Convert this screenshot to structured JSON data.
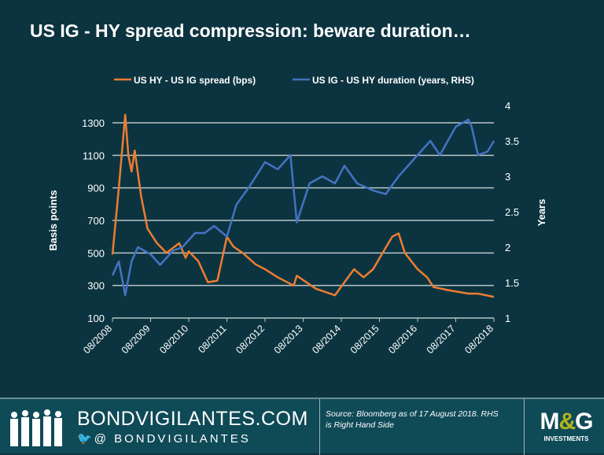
{
  "title": "US IG - HY spread compression: beware duration…",
  "chart_data": {
    "type": "line",
    "title": "US IG - HY spread compression: beware duration…",
    "xlabel": "",
    "ylabel": "Basis points",
    "ylabel_right": "Years",
    "ylim": [
      100,
      1300
    ],
    "ylim_right": [
      1,
      4
    ],
    "yticks": [
      "100",
      "300",
      "500",
      "700",
      "900",
      "1100",
      "1300"
    ],
    "yticks_right": [
      "1",
      "1.5",
      "2",
      "2.5",
      "3",
      "3.5",
      "4"
    ],
    "xticks": [
      "08/2008",
      "08/2009",
      "08/2010",
      "08/2011",
      "08/2012",
      "08/2013",
      "08/2014",
      "08/2015",
      "08/2016",
      "08/2017",
      "08/2018"
    ],
    "grid": true,
    "legend_placement": "top",
    "series": [
      {
        "name": "US HY - US IG spread (bps)",
        "axis": "left",
        "color": "#ed7d31",
        "x": [
          "2008-08",
          "2008-10",
          "2008-12",
          "2009-01",
          "2009-02",
          "2009-03",
          "2009-05",
          "2009-07",
          "2009-10",
          "2010-01",
          "2010-05",
          "2010-07",
          "2010-08",
          "2010-11",
          "2011-02",
          "2011-05",
          "2011-08",
          "2011-10",
          "2012-01",
          "2012-05",
          "2012-08",
          "2012-12",
          "2013-05",
          "2013-06",
          "2013-12",
          "2014-06",
          "2014-09",
          "2014-12",
          "2015-03",
          "2015-06",
          "2015-09",
          "2015-12",
          "2016-02",
          "2016-04",
          "2016-08",
          "2016-11",
          "2017-01",
          "2017-06",
          "2017-12",
          "2018-03",
          "2018-08"
        ],
        "values": [
          490,
          900,
          1350,
          1100,
          1000,
          1130,
          850,
          650,
          560,
          500,
          560,
          470,
          510,
          450,
          320,
          330,
          600,
          540,
          500,
          430,
          400,
          350,
          300,
          360,
          280,
          240,
          320,
          400,
          350,
          400,
          500,
          600,
          620,
          500,
          400,
          350,
          290,
          270,
          250,
          250,
          230
        ]
      },
      {
        "name": "US IG - US HY duration (years, RHS)",
        "axis": "right",
        "color": "#4472c4",
        "x": [
          "2008-08",
          "2008-10",
          "2008-12",
          "2009-02",
          "2009-04",
          "2009-08",
          "2009-11",
          "2010-03",
          "2010-06",
          "2010-10",
          "2011-01",
          "2011-04",
          "2011-08",
          "2011-11",
          "2012-03",
          "2012-08",
          "2012-12",
          "2013-04",
          "2013-06",
          "2013-10",
          "2014-02",
          "2014-06",
          "2014-09",
          "2015-01",
          "2015-06",
          "2015-10",
          "2016-02",
          "2016-06",
          "2016-12",
          "2017-03",
          "2017-08",
          "2017-12",
          "2018-01",
          "2018-03",
          "2018-06",
          "2018-08"
        ],
        "values": [
          1.6,
          1.8,
          1.32,
          1.8,
          2.0,
          1.9,
          1.75,
          1.95,
          2.0,
          2.2,
          2.2,
          2.3,
          2.15,
          2.6,
          2.85,
          3.2,
          3.1,
          3.3,
          2.35,
          2.9,
          3.0,
          2.9,
          3.15,
          2.9,
          2.8,
          2.75,
          3.0,
          3.2,
          3.5,
          3.3,
          3.7,
          3.8,
          3.7,
          3.3,
          3.35,
          3.5
        ]
      }
    ]
  },
  "footer": {
    "brand": "BONDVIGILANTES.COM",
    "handle": "@ BONDVIGILANTES",
    "source": "Source: Bloomberg as of 17 August 2018. RHS is Right Hand Side",
    "logo_text": "M&G",
    "logo_sub": "INVESTMENTS"
  }
}
